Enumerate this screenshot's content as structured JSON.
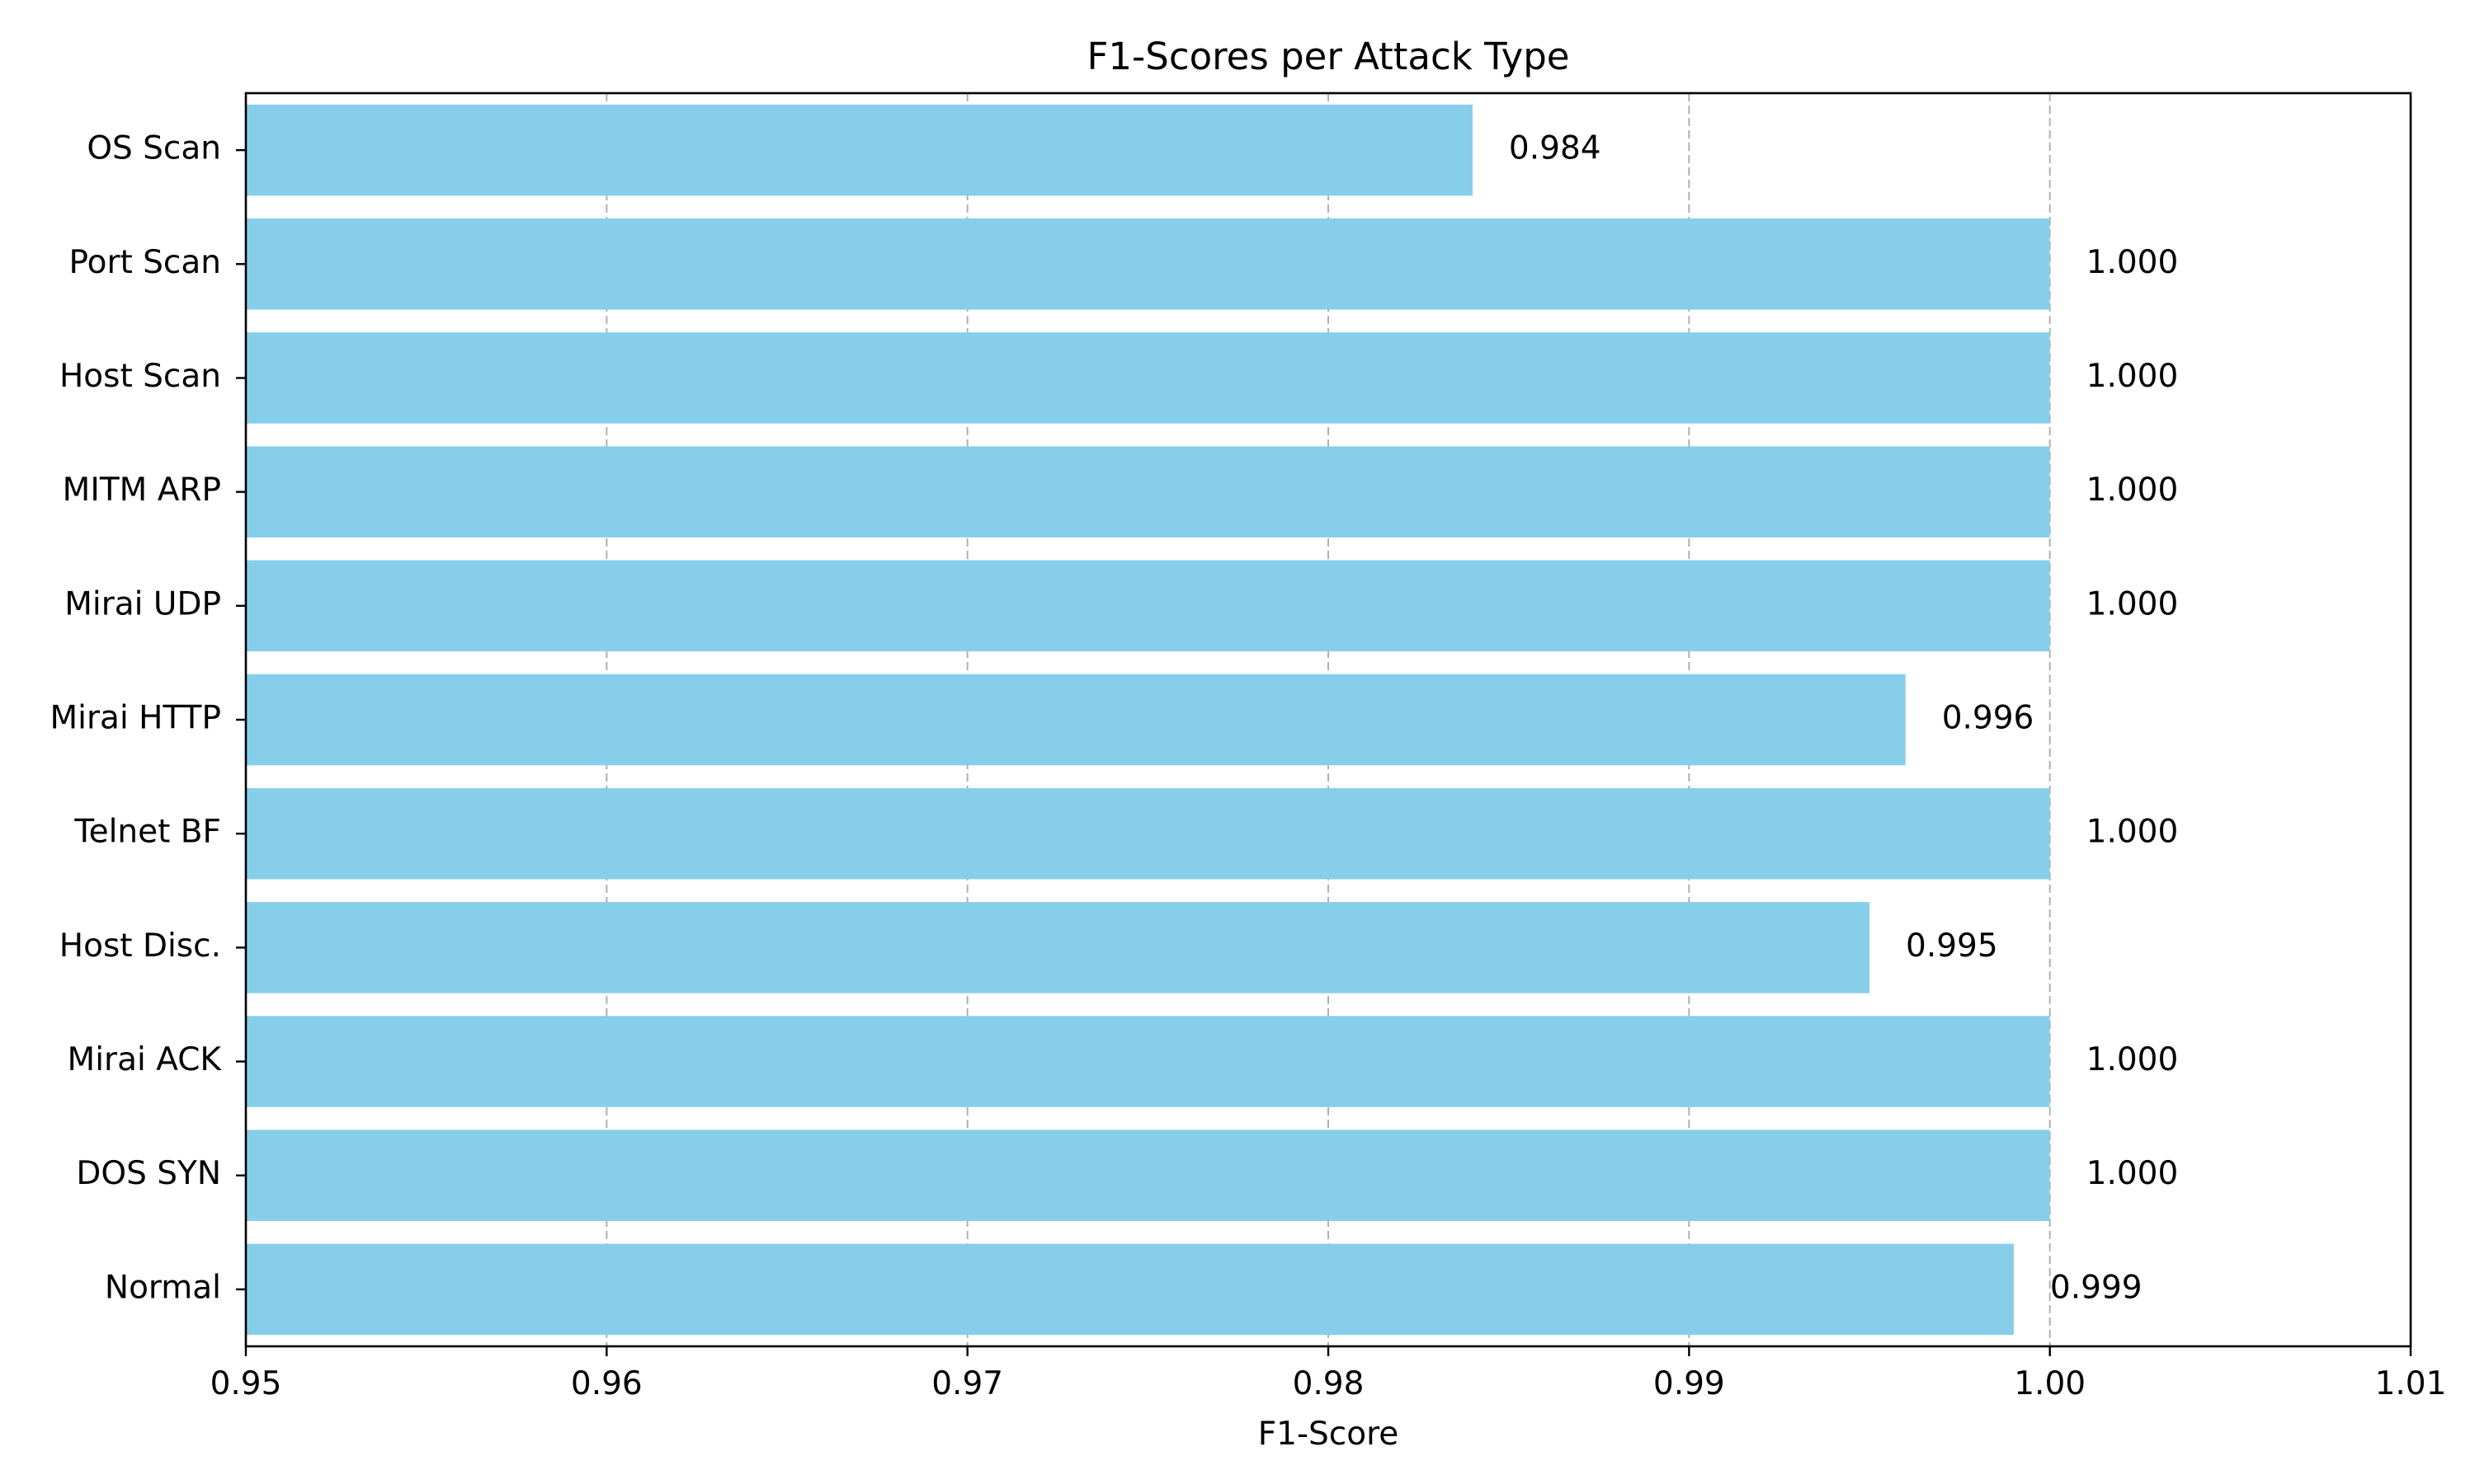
{
  "chart_data": {
    "type": "bar",
    "orientation": "horizontal",
    "title": "F1-Scores per Attack Type",
    "xlabel": "F1-Score",
    "ylabel": "",
    "categories": [
      "Normal",
      "DOS SYN",
      "Mirai ACK",
      "Host Disc.",
      "Telnet BF",
      "Mirai HTTP",
      "Mirai UDP",
      "MITM ARP",
      "Host Scan",
      "Port Scan",
      "OS Scan"
    ],
    "values": [
      0.999,
      1.0,
      1.0,
      0.995,
      1.0,
      0.996,
      1.0,
      1.0,
      1.0,
      1.0,
      0.984
    ],
    "value_labels": [
      "0.999",
      "1.000",
      "1.000",
      "0.995",
      "1.000",
      "0.996",
      "1.000",
      "1.000",
      "1.000",
      "1.000",
      "0.984"
    ],
    "xlim": [
      0.95,
      1.01
    ],
    "xticks": [
      0.95,
      0.96,
      0.97,
      0.98,
      0.99,
      1.0,
      1.01
    ],
    "xtick_labels": [
      "0.95",
      "0.96",
      "0.97",
      "0.98",
      "0.99",
      "1.00",
      "1.01"
    ],
    "grid": "x-axis dashed",
    "legend": "none",
    "bar_color": "#87ceeb",
    "grid_color": "#b0b0b0",
    "axis_color": "#000000"
  }
}
